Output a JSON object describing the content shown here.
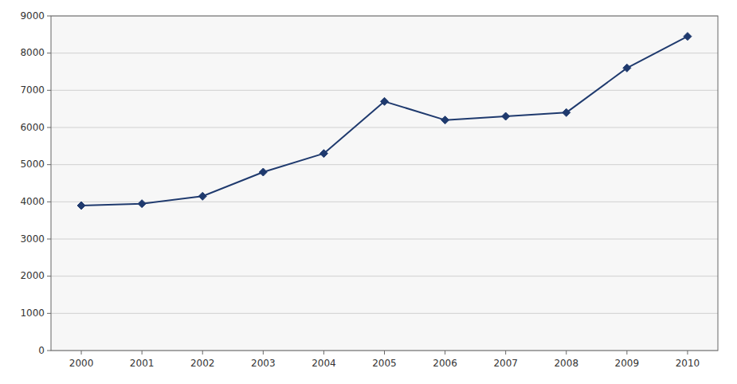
{
  "chart_data": {
    "type": "line",
    "x": [
      2000,
      2001,
      2002,
      2003,
      2004,
      2005,
      2006,
      2007,
      2008,
      2009,
      2010
    ],
    "values": [
      3900,
      3950,
      4150,
      4800,
      5300,
      6700,
      6200,
      6300,
      6400,
      7600,
      8450
    ],
    "color": "#1F3A6E",
    "marker": "diamond",
    "xlim": [
      1999.5,
      2010.5
    ],
    "xticks": [
      2000,
      2001,
      2002,
      2003,
      2004,
      2005,
      2006,
      2007,
      2008,
      2009,
      2010
    ],
    "ylim": [
      0,
      9000
    ],
    "yticks": [
      0,
      1000,
      2000,
      3000,
      4000,
      5000,
      6000,
      7000,
      8000,
      9000
    ],
    "grid": true
  }
}
